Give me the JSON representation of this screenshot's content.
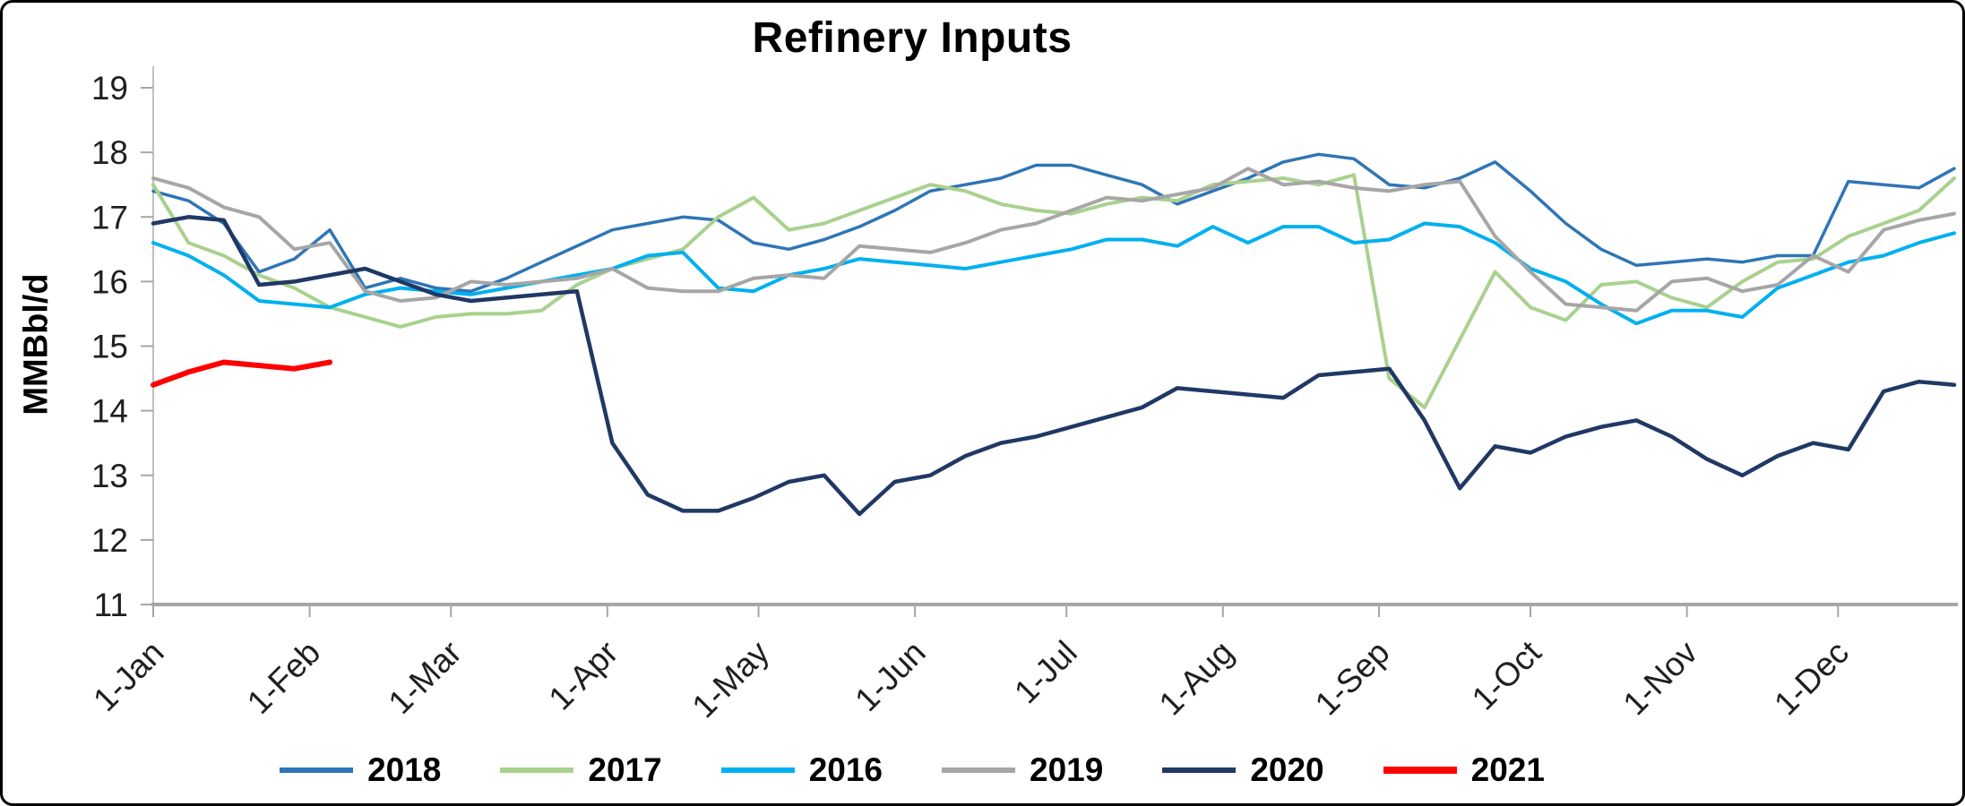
{
  "chart_data": {
    "type": "line",
    "title": "Refinery Inputs",
    "ylabel": "MMBbl/d",
    "ylim": [
      11,
      19
    ],
    "yticks": [
      11,
      12,
      13,
      14,
      15,
      16,
      17,
      18,
      19
    ],
    "grid": "off",
    "legend_position": "bottom",
    "x_unit": "week",
    "x_range_weeks": [
      0,
      51
    ],
    "xtick_labels": [
      "1-Jan",
      "1-Feb",
      "1-Mar",
      "1-Apr",
      "1-May",
      "1-Jun",
      "1-Jul",
      "1-Aug",
      "1-Sep",
      "1-Oct",
      "1-Nov",
      "1-Dec"
    ],
    "xtick_week_positions": [
      0,
      4.43,
      8.43,
      12.86,
      17.14,
      21.57,
      25.86,
      30.29,
      34.71,
      39.0,
      43.43,
      47.71
    ],
    "series": [
      {
        "name": "2018",
        "color": "#2E75B6",
        "width": 3.5,
        "start_week": 0,
        "values": [
          17.4,
          17.25,
          16.9,
          16.15,
          16.35,
          16.8,
          15.9,
          16.05,
          15.9,
          15.85,
          16.05,
          16.3,
          16.55,
          16.8,
          16.9,
          17.0,
          16.95,
          16.6,
          16.5,
          16.65,
          16.85,
          17.1,
          17.4,
          17.5,
          17.6,
          17.8,
          17.8,
          17.65,
          17.5,
          17.2,
          17.4,
          17.6,
          17.85,
          17.97,
          17.9,
          17.5,
          17.45,
          17.6,
          17.85,
          17.4,
          16.9,
          16.5,
          16.25,
          16.3,
          16.35,
          16.3,
          16.4,
          16.4,
          17.55,
          17.5,
          17.45,
          17.75
        ]
      },
      {
        "name": "2017",
        "color": "#A9D18E",
        "width": 4,
        "start_week": 0,
        "values": [
          17.5,
          16.6,
          16.4,
          16.1,
          15.9,
          15.6,
          15.45,
          15.3,
          15.45,
          15.5,
          15.5,
          15.55,
          15.95,
          16.2,
          16.35,
          16.5,
          17.0,
          17.3,
          16.8,
          16.9,
          17.1,
          17.3,
          17.5,
          17.4,
          17.2,
          17.1,
          17.05,
          17.2,
          17.3,
          17.25,
          17.5,
          17.55,
          17.6,
          17.5,
          17.65,
          14.5,
          14.05,
          15.1,
          16.15,
          15.6,
          15.4,
          15.95,
          16.0,
          15.75,
          15.6,
          16.0,
          16.3,
          16.35,
          16.7,
          16.9,
          17.1,
          17.6
        ]
      },
      {
        "name": "2016",
        "color": "#00B0F0",
        "width": 4,
        "start_week": 0,
        "values": [
          16.6,
          16.4,
          16.1,
          15.7,
          15.65,
          15.6,
          15.8,
          15.9,
          15.85,
          15.8,
          15.9,
          16.0,
          16.1,
          16.2,
          16.4,
          16.45,
          15.9,
          15.85,
          16.1,
          16.2,
          16.35,
          16.3,
          16.25,
          16.2,
          16.3,
          16.4,
          16.5,
          16.65,
          16.65,
          16.55,
          16.85,
          16.6,
          16.85,
          16.85,
          16.6,
          16.65,
          16.9,
          16.85,
          16.6,
          16.2,
          16.0,
          15.65,
          15.35,
          15.55,
          15.55,
          15.45,
          15.9,
          16.1,
          16.3,
          16.4,
          16.6,
          16.75
        ]
      },
      {
        "name": "2019",
        "color": "#A6A6A6",
        "width": 4,
        "start_week": 0,
        "values": [
          17.6,
          17.45,
          17.15,
          17.0,
          16.5,
          16.6,
          15.85,
          15.7,
          15.75,
          16.0,
          15.95,
          16.0,
          16.05,
          16.2,
          15.9,
          15.85,
          15.85,
          16.05,
          16.1,
          16.05,
          16.55,
          16.5,
          16.45,
          16.6,
          16.8,
          16.9,
          17.1,
          17.3,
          17.25,
          17.35,
          17.45,
          17.75,
          17.5,
          17.55,
          17.45,
          17.4,
          17.5,
          17.55,
          16.7,
          16.15,
          15.65,
          15.6,
          15.55,
          16.0,
          16.05,
          15.85,
          15.95,
          16.4,
          16.15,
          16.8,
          16.95,
          17.05
        ]
      },
      {
        "name": "2020",
        "color": "#203864",
        "width": 4.5,
        "start_week": 0,
        "values": [
          16.9,
          17.0,
          16.95,
          15.95,
          16.0,
          16.1,
          16.2,
          16.0,
          15.8,
          15.7,
          15.75,
          15.8,
          15.85,
          13.5,
          12.7,
          12.45,
          12.45,
          12.65,
          12.9,
          13.0,
          12.4,
          12.9,
          13.0,
          13.3,
          13.5,
          13.6,
          13.75,
          13.9,
          14.05,
          14.35,
          14.3,
          14.25,
          14.2,
          14.55,
          14.6,
          14.65,
          13.85,
          12.8,
          13.45,
          13.35,
          13.6,
          13.75,
          13.85,
          13.6,
          13.25,
          13.0,
          13.3,
          13.5,
          13.4,
          14.3,
          14.45,
          14.4
        ]
      },
      {
        "name": "2021",
        "color": "#FF0000",
        "width": 6,
        "start_week": 0,
        "values": [
          14.4,
          14.6,
          14.75,
          14.7,
          14.65,
          14.75
        ]
      }
    ]
  },
  "colors": {
    "axis_line": "#A6A6A6",
    "axis_minor": "#BFBFBF",
    "tick_text": "#1f1f1f",
    "title_text": "#000000"
  }
}
